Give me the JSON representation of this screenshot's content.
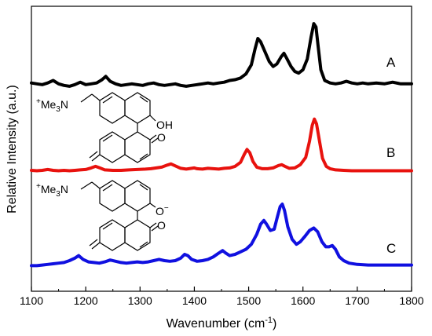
{
  "chart_data": {
    "type": "line",
    "title": "",
    "xlabel": "Wavenumber (cm",
    "xlabel_sup": "-1",
    "xlabel_tail": ")",
    "ylabel": "Relative Intensity (a.u.)",
    "xlim": [
      1100,
      1800
    ],
    "x_ticks": [
      "1100",
      "1200",
      "1300",
      "1400",
      "1500",
      "1600",
      "1700",
      "1800"
    ],
    "grid": false,
    "series": [
      {
        "name": "A",
        "color": "#000000",
        "points": [
          [
            1100,
            0.06
          ],
          [
            1110,
            0.05
          ],
          [
            1120,
            0.04
          ],
          [
            1130,
            0.06
          ],
          [
            1140,
            0.09
          ],
          [
            1150,
            0.05
          ],
          [
            1160,
            0.03
          ],
          [
            1170,
            0.02
          ],
          [
            1180,
            0.04
          ],
          [
            1190,
            0.07
          ],
          [
            1200,
            0.04
          ],
          [
            1210,
            0.05
          ],
          [
            1220,
            0.06
          ],
          [
            1230,
            0.1
          ],
          [
            1237,
            0.14
          ],
          [
            1245,
            0.08
          ],
          [
            1255,
            0.05
          ],
          [
            1265,
            0.03
          ],
          [
            1275,
            0.04
          ],
          [
            1285,
            0.05
          ],
          [
            1295,
            0.04
          ],
          [
            1305,
            0.03
          ],
          [
            1315,
            0.05
          ],
          [
            1325,
            0.06
          ],
          [
            1335,
            0.04
          ],
          [
            1345,
            0.03
          ],
          [
            1355,
            0.04
          ],
          [
            1365,
            0.05
          ],
          [
            1375,
            0.03
          ],
          [
            1385,
            0.02
          ],
          [
            1395,
            0.03
          ],
          [
            1405,
            0.04
          ],
          [
            1415,
            0.05
          ],
          [
            1425,
            0.06
          ],
          [
            1435,
            0.05
          ],
          [
            1445,
            0.06
          ],
          [
            1455,
            0.07
          ],
          [
            1465,
            0.09
          ],
          [
            1475,
            0.1
          ],
          [
            1485,
            0.12
          ],
          [
            1495,
            0.17
          ],
          [
            1505,
            0.28
          ],
          [
            1512,
            0.48
          ],
          [
            1517,
            0.6
          ],
          [
            1522,
            0.56
          ],
          [
            1530,
            0.44
          ],
          [
            1538,
            0.32
          ],
          [
            1545,
            0.26
          ],
          [
            1552,
            0.29
          ],
          [
            1560,
            0.38
          ],
          [
            1565,
            0.42
          ],
          [
            1570,
            0.36
          ],
          [
            1578,
            0.26
          ],
          [
            1585,
            0.2
          ],
          [
            1592,
            0.18
          ],
          [
            1600,
            0.22
          ],
          [
            1608,
            0.35
          ],
          [
            1615,
            0.62
          ],
          [
            1620,
            0.78
          ],
          [
            1624,
            0.74
          ],
          [
            1628,
            0.5
          ],
          [
            1633,
            0.22
          ],
          [
            1640,
            0.09
          ],
          [
            1650,
            0.06
          ],
          [
            1660,
            0.05
          ],
          [
            1670,
            0.06
          ],
          [
            1680,
            0.08
          ],
          [
            1690,
            0.06
          ],
          [
            1700,
            0.05
          ],
          [
            1710,
            0.06
          ],
          [
            1720,
            0.05
          ],
          [
            1735,
            0.06
          ],
          [
            1750,
            0.05
          ],
          [
            1765,
            0.07
          ],
          [
            1780,
            0.05
          ],
          [
            1800,
            0.05
          ]
        ]
      },
      {
        "name": "B",
        "color": "#e8120e",
        "points": [
          [
            1100,
            0.02
          ],
          [
            1110,
            0.015
          ],
          [
            1120,
            0.02
          ],
          [
            1130,
            0.03
          ],
          [
            1140,
            0.02
          ],
          [
            1150,
            0.015
          ],
          [
            1160,
            0.02
          ],
          [
            1170,
            0.015
          ],
          [
            1180,
            0.02
          ],
          [
            1190,
            0.025
          ],
          [
            1200,
            0.03
          ],
          [
            1210,
            0.05
          ],
          [
            1218,
            0.07
          ],
          [
            1226,
            0.05
          ],
          [
            1235,
            0.025
          ],
          [
            1250,
            0.02
          ],
          [
            1265,
            0.02
          ],
          [
            1280,
            0.025
          ],
          [
            1295,
            0.03
          ],
          [
            1310,
            0.035
          ],
          [
            1320,
            0.04
          ],
          [
            1330,
            0.05
          ],
          [
            1340,
            0.06
          ],
          [
            1350,
            0.085
          ],
          [
            1357,
            0.1
          ],
          [
            1365,
            0.075
          ],
          [
            1375,
            0.045
          ],
          [
            1385,
            0.035
          ],
          [
            1395,
            0.045
          ],
          [
            1400,
            0.05
          ],
          [
            1405,
            0.04
          ],
          [
            1415,
            0.035
          ],
          [
            1425,
            0.045
          ],
          [
            1435,
            0.04
          ],
          [
            1445,
            0.035
          ],
          [
            1455,
            0.045
          ],
          [
            1465,
            0.05
          ],
          [
            1475,
            0.07
          ],
          [
            1485,
            0.12
          ],
          [
            1492,
            0.22
          ],
          [
            1497,
            0.28
          ],
          [
            1502,
            0.24
          ],
          [
            1508,
            0.13
          ],
          [
            1515,
            0.06
          ],
          [
            1525,
            0.04
          ],
          [
            1535,
            0.04
          ],
          [
            1545,
            0.05
          ],
          [
            1555,
            0.08
          ],
          [
            1561,
            0.09
          ],
          [
            1567,
            0.07
          ],
          [
            1575,
            0.045
          ],
          [
            1585,
            0.05
          ],
          [
            1595,
            0.09
          ],
          [
            1605,
            0.18
          ],
          [
            1612,
            0.38
          ],
          [
            1617,
            0.58
          ],
          [
            1621,
            0.66
          ],
          [
            1625,
            0.6
          ],
          [
            1630,
            0.4
          ],
          [
            1636,
            0.17
          ],
          [
            1643,
            0.07
          ],
          [
            1650,
            0.04
          ],
          [
            1660,
            0.025
          ],
          [
            1675,
            0.02
          ],
          [
            1690,
            0.015
          ],
          [
            1710,
            0.015
          ],
          [
            1740,
            0.015
          ],
          [
            1770,
            0.015
          ],
          [
            1800,
            0.015
          ]
        ]
      },
      {
        "name": "C",
        "color": "#1010e0",
        "points": [
          [
            1100,
            0.01
          ],
          [
            1110,
            0.01
          ],
          [
            1120,
            0.015
          ],
          [
            1130,
            0.02
          ],
          [
            1140,
            0.025
          ],
          [
            1150,
            0.03
          ],
          [
            1160,
            0.035
          ],
          [
            1170,
            0.05
          ],
          [
            1180,
            0.07
          ],
          [
            1187,
            0.09
          ],
          [
            1195,
            0.06
          ],
          [
            1205,
            0.04
          ],
          [
            1215,
            0.035
          ],
          [
            1225,
            0.03
          ],
          [
            1235,
            0.04
          ],
          [
            1245,
            0.055
          ],
          [
            1255,
            0.045
          ],
          [
            1265,
            0.035
          ],
          [
            1275,
            0.03
          ],
          [
            1285,
            0.035
          ],
          [
            1295,
            0.04
          ],
          [
            1305,
            0.035
          ],
          [
            1315,
            0.04
          ],
          [
            1325,
            0.05
          ],
          [
            1335,
            0.06
          ],
          [
            1345,
            0.05
          ],
          [
            1355,
            0.045
          ],
          [
            1365,
            0.05
          ],
          [
            1375,
            0.07
          ],
          [
            1382,
            0.1
          ],
          [
            1388,
            0.09
          ],
          [
            1395,
            0.06
          ],
          [
            1405,
            0.045
          ],
          [
            1415,
            0.05
          ],
          [
            1425,
            0.06
          ],
          [
            1435,
            0.08
          ],
          [
            1445,
            0.11
          ],
          [
            1452,
            0.13
          ],
          [
            1458,
            0.11
          ],
          [
            1465,
            0.09
          ],
          [
            1475,
            0.1
          ],
          [
            1485,
            0.12
          ],
          [
            1495,
            0.14
          ],
          [
            1505,
            0.18
          ],
          [
            1515,
            0.26
          ],
          [
            1522,
            0.34
          ],
          [
            1528,
            0.37
          ],
          [
            1533,
            0.34
          ],
          [
            1540,
            0.29
          ],
          [
            1547,
            0.3
          ],
          [
            1553,
            0.4
          ],
          [
            1558,
            0.48
          ],
          [
            1562,
            0.5
          ],
          [
            1566,
            0.45
          ],
          [
            1572,
            0.32
          ],
          [
            1580,
            0.22
          ],
          [
            1588,
            0.18
          ],
          [
            1595,
            0.2
          ],
          [
            1603,
            0.24
          ],
          [
            1612,
            0.29
          ],
          [
            1620,
            0.31
          ],
          [
            1627,
            0.28
          ],
          [
            1635,
            0.2
          ],
          [
            1642,
            0.16
          ],
          [
            1648,
            0.16
          ],
          [
            1654,
            0.17
          ],
          [
            1660,
            0.14
          ],
          [
            1667,
            0.08
          ],
          [
            1675,
            0.05
          ],
          [
            1685,
            0.03
          ],
          [
            1700,
            0.02
          ],
          [
            1720,
            0.015
          ],
          [
            1750,
            0.015
          ],
          [
            1800,
            0.015
          ]
        ]
      }
    ],
    "annotations": {
      "A_label": "A",
      "B_label": "B",
      "C_label": "C"
    }
  },
  "structures": {
    "top": {
      "ammonium_plus": "+",
      "ammonium": "Me",
      "ammonium_sub": "3",
      "ammonium_n": "N",
      "oh": "OH",
      "carbonyl": "O"
    },
    "bottom": {
      "ammonium_plus": "+",
      "ammonium": "Me",
      "ammonium_sub": "3",
      "ammonium_n": "N",
      "oxide": "O",
      "oxide_charge": "−",
      "carbonyl": "O"
    }
  }
}
